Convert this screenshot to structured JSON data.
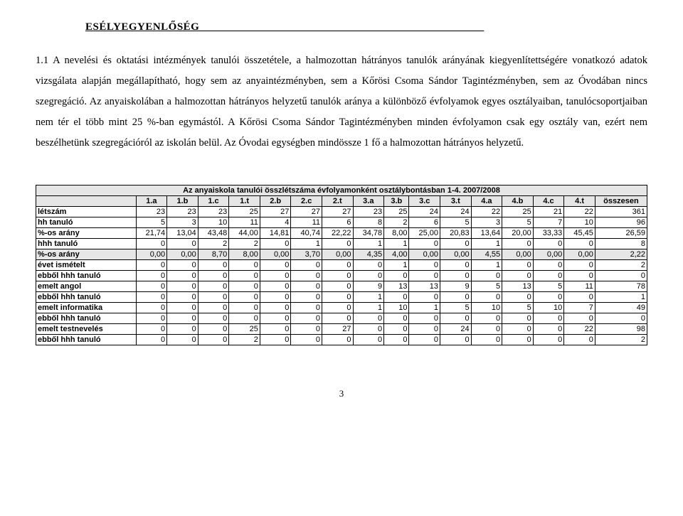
{
  "header": {
    "title": "ESÉLYEGYENLŐSÉG__________________________________________________"
  },
  "paragraph": {
    "text": "1.1 A nevelési és oktatási intézmények tanulói összetétele, a halmozottan hátrányos tanulók arányának kiegyenlítettségére vonatkozó adatok vizsgálata alapján megállapítható, hogy sem az anyaintézményben, sem a Kőrösi Csoma Sándor Tagintézményben, sem az Óvodában nincs szegregáció. Az anyaiskolában a halmozottan hátrányos helyzetű tanulók aránya a különböző évfolyamok egyes osztályaiban, tanulócsoportjaiban nem tér el több mint 25 %-ban egymástól. A Kőrösi Csoma Sándor Tagintézményben minden évfolyamon csak egy osztály van, ezért nem beszélhetünk szegregációról az iskolán belül. Az Óvodai egységben mindössze 1 fő a halmozottan hátrányos helyzetű."
  },
  "table": {
    "title": "Az anyaiskola tanulói összlétszáma évfolyamonként osztálybontásban 1-4. 2007/2008",
    "columns": [
      "",
      "1.a",
      "1.b",
      "1.c",
      "1.t",
      "2.b",
      "2.c",
      "2.t",
      "3.a",
      "3.b",
      "3.c",
      "3.t",
      "4.a",
      "4.b",
      "4.c",
      "4.t",
      "összesen"
    ],
    "rows": [
      {
        "label": "létszám",
        "shaded": false,
        "cells": [
          "23",
          "23",
          "23",
          "25",
          "27",
          "27",
          "27",
          "23",
          "25",
          "24",
          "24",
          "22",
          "25",
          "21",
          "22",
          "361"
        ]
      },
      {
        "label": "hh tanuló",
        "shaded": false,
        "cells": [
          "5",
          "3",
          "10",
          "11",
          "4",
          "11",
          "6",
          "8",
          "2",
          "6",
          "5",
          "3",
          "5",
          "7",
          "10",
          "96"
        ]
      },
      {
        "label": "%-os arány",
        "shaded": false,
        "cells": [
          "21,74",
          "13,04",
          "43,48",
          "44,00",
          "14,81",
          "40,74",
          "22,22",
          "34,78",
          "8,00",
          "25,00",
          "20,83",
          "13,64",
          "20,00",
          "33,33",
          "45,45",
          "26,59"
        ]
      },
      {
        "label": "hhh tanuló",
        "shaded": false,
        "cells": [
          "0",
          "0",
          "2",
          "2",
          "0",
          "1",
          "0",
          "1",
          "1",
          "0",
          "0",
          "1",
          "0",
          "0",
          "0",
          "8"
        ]
      },
      {
        "label": "%-os arány",
        "shaded": true,
        "cells": [
          "0,00",
          "0,00",
          "8,70",
          "8,00",
          "0,00",
          "3,70",
          "0,00",
          "4,35",
          "4,00",
          "0,00",
          "0,00",
          "4,55",
          "0,00",
          "0,00",
          "0,00",
          "2,22"
        ]
      },
      {
        "label": "évet ismételt",
        "shaded": false,
        "cells": [
          "0",
          "0",
          "0",
          "0",
          "0",
          "0",
          "0",
          "0",
          "1",
          "0",
          "0",
          "1",
          "0",
          "0",
          "0",
          "2"
        ]
      },
      {
        "label": "ebből hhh tanuló",
        "shaded": false,
        "cells": [
          "0",
          "0",
          "0",
          "0",
          "0",
          "0",
          "0",
          "0",
          "0",
          "0",
          "0",
          "0",
          "0",
          "0",
          "0",
          "0"
        ]
      },
      {
        "label": "emelt angol",
        "shaded": false,
        "cells": [
          "0",
          "0",
          "0",
          "0",
          "0",
          "0",
          "0",
          "9",
          "13",
          "13",
          "9",
          "5",
          "13",
          "5",
          "11",
          "78"
        ]
      },
      {
        "label": "ebből hhh tanuló",
        "shaded": false,
        "cells": [
          "0",
          "0",
          "0",
          "0",
          "0",
          "0",
          "0",
          "1",
          "0",
          "0",
          "0",
          "0",
          "0",
          "0",
          "0",
          "1"
        ]
      },
      {
        "label": "emelt informatika",
        "shaded": false,
        "cells": [
          "0",
          "0",
          "0",
          "0",
          "0",
          "0",
          "0",
          "1",
          "10",
          "1",
          "5",
          "10",
          "5",
          "10",
          "7",
          "49"
        ]
      },
      {
        "label": "ebből hhh tanuló",
        "shaded": false,
        "cells": [
          "0",
          "0",
          "0",
          "0",
          "0",
          "0",
          "0",
          "0",
          "0",
          "0",
          "0",
          "0",
          "0",
          "0",
          "0",
          "0"
        ]
      },
      {
        "label": "emelt testnevelés",
        "shaded": false,
        "cells": [
          "0",
          "0",
          "0",
          "25",
          "0",
          "0",
          "27",
          "0",
          "0",
          "0",
          "24",
          "0",
          "0",
          "0",
          "22",
          "98"
        ]
      },
      {
        "label": "ebből hhh tanuló",
        "shaded": false,
        "cells": [
          "0",
          "0",
          "0",
          "2",
          "0",
          "0",
          "0",
          "0",
          "0",
          "0",
          "0",
          "0",
          "0",
          "0",
          "0",
          "2"
        ]
      }
    ]
  },
  "page_number": "3",
  "colors": {
    "shade": "#e6e6e6",
    "background": "#ffffff",
    "text": "#000000",
    "border": "#000000"
  }
}
